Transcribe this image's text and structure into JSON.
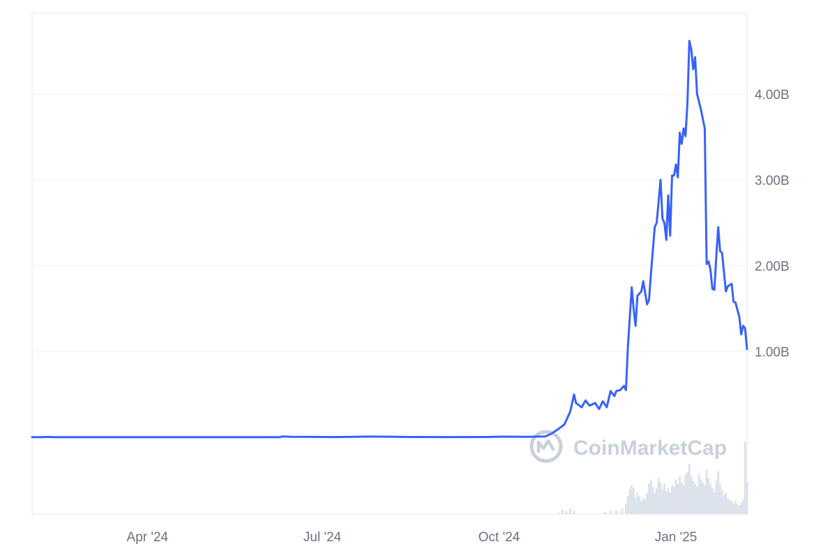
{
  "watermark": {
    "text": "CoinMarketCap"
  },
  "colors": {
    "line": "#3861FB",
    "volume": "#DDE3EC",
    "grid": "#EEF0F3",
    "border": "#E3E6EB",
    "axis_text": "#6B7180",
    "watermark": "#C9D0DC"
  },
  "chart_data": {
    "type": "line",
    "title": "",
    "xlabel": "",
    "ylabel": "",
    "x_ticks": [
      "Apr '24",
      "Jul '24",
      "Oct '24",
      "Jan '25"
    ],
    "y_ticks": [
      "1.00B",
      "2.00B",
      "3.00B",
      "4.00B"
    ],
    "y_tick_values": [
      1000000000,
      2000000000,
      3000000000,
      4000000000
    ],
    "ylim": [
      0,
      4950000000
    ],
    "xlim": [
      "2024-02-01",
      "2025-02-07"
    ],
    "grid": true,
    "series": [
      {
        "values": [
          [
            "2024-02-01",
            2000000
          ],
          [
            "2024-02-06",
            2500000
          ],
          [
            "2024-02-10",
            5000000
          ],
          [
            "2024-02-11",
            3000000
          ],
          [
            "2024-02-12",
            2000000
          ],
          [
            "2024-03-15",
            1500000
          ],
          [
            "2024-04-20",
            1500000
          ],
          [
            "2024-05-30",
            1500000
          ],
          [
            "2024-06-09",
            1500000
          ],
          [
            "2024-06-10",
            10000000
          ],
          [
            "2024-06-12",
            9000000
          ],
          [
            "2024-06-15",
            6000000
          ],
          [
            "2024-06-25",
            5000000
          ],
          [
            "2024-07-08",
            3000000
          ],
          [
            "2024-07-18",
            6000000
          ],
          [
            "2024-07-25",
            9000000
          ],
          [
            "2024-08-05",
            7000000
          ],
          [
            "2024-08-15",
            4000000
          ],
          [
            "2024-09-10",
            3000000
          ],
          [
            "2024-09-25",
            4000000
          ],
          [
            "2024-10-03",
            8000000
          ],
          [
            "2024-10-15",
            6000000
          ],
          [
            "2024-10-25",
            10000000
          ],
          [
            "2024-10-28",
            40000000
          ],
          [
            "2024-11-01",
            100000000
          ],
          [
            "2024-11-04",
            150000000
          ],
          [
            "2024-11-07",
            300000000
          ],
          [
            "2024-11-08",
            400000000
          ],
          [
            "2024-11-09",
            500000000
          ],
          [
            "2024-11-10",
            400000000
          ],
          [
            "2024-11-13",
            350000000
          ],
          [
            "2024-11-15",
            430000000
          ],
          [
            "2024-11-17",
            370000000
          ],
          [
            "2024-11-20",
            400000000
          ],
          [
            "2024-11-22",
            330000000
          ],
          [
            "2024-11-24",
            420000000
          ],
          [
            "2024-11-26",
            350000000
          ],
          [
            "2024-11-28",
            540000000
          ],
          [
            "2024-11-30",
            480000000
          ],
          [
            "2024-12-01",
            540000000
          ],
          [
            "2024-12-03",
            550000000
          ],
          [
            "2024-12-05",
            600000000
          ],
          [
            "2024-12-06",
            550000000
          ],
          [
            "2024-12-07",
            1050000000
          ],
          [
            "2024-12-09",
            1750000000
          ],
          [
            "2024-12-10",
            1500000000
          ],
          [
            "2024-12-11",
            1300000000
          ],
          [
            "2024-12-12",
            1650000000
          ],
          [
            "2024-12-14",
            1700000000
          ],
          [
            "2024-12-15",
            1820000000
          ],
          [
            "2024-12-16",
            1680000000
          ],
          [
            "2024-12-17",
            1550000000
          ],
          [
            "2024-12-18",
            1600000000
          ],
          [
            "2024-12-19",
            1900000000
          ],
          [
            "2024-12-21",
            2450000000
          ],
          [
            "2024-12-22",
            2500000000
          ],
          [
            "2024-12-24",
            3000000000
          ],
          [
            "2024-12-25",
            2550000000
          ],
          [
            "2024-12-26",
            2500000000
          ],
          [
            "2024-12-27",
            2300000000
          ],
          [
            "2024-12-28",
            2820000000
          ],
          [
            "2024-12-29",
            2350000000
          ],
          [
            "2024-12-30",
            3050000000
          ],
          [
            "2024-12-31",
            3050000000
          ],
          [
            "2025-01-01",
            3180000000
          ],
          [
            "2025-01-02",
            3030000000
          ],
          [
            "2025-01-03",
            3550000000
          ],
          [
            "2025-01-04",
            3420000000
          ],
          [
            "2025-01-05",
            3600000000
          ],
          [
            "2025-01-06",
            3510000000
          ],
          [
            "2025-01-07",
            3900000000
          ],
          [
            "2025-01-08",
            4620000000
          ],
          [
            "2025-01-09",
            4520000000
          ],
          [
            "2025-01-10",
            4290000000
          ],
          [
            "2025-01-11",
            4430000000
          ],
          [
            "2025-01-12",
            4000000000
          ],
          [
            "2025-01-14",
            3820000000
          ],
          [
            "2025-01-16",
            3600000000
          ],
          [
            "2025-01-17",
            2020000000
          ],
          [
            "2025-01-18",
            2050000000
          ],
          [
            "2025-01-19",
            1950000000
          ],
          [
            "2025-01-20",
            1730000000
          ],
          [
            "2025-01-21",
            1720000000
          ],
          [
            "2025-01-22",
            2100000000
          ],
          [
            "2025-01-23",
            2450000000
          ],
          [
            "2025-01-24",
            2170000000
          ],
          [
            "2025-01-25",
            2150000000
          ],
          [
            "2025-01-27",
            1700000000
          ],
          [
            "2025-01-28",
            1760000000
          ],
          [
            "2025-01-30",
            1790000000
          ],
          [
            "2025-01-31",
            1580000000
          ],
          [
            "2025-02-01",
            1570000000
          ],
          [
            "2025-02-03",
            1400000000
          ],
          [
            "2025-02-04",
            1200000000
          ],
          [
            "2025-02-05",
            1300000000
          ],
          [
            "2025-02-06",
            1270000000
          ],
          [
            "2025-02-07",
            1030000000
          ]
        ]
      }
    ],
    "volume": {
      "values": [
        [
          "2024-11-01",
          0.02
        ],
        [
          "2024-11-03",
          0.06
        ],
        [
          "2024-11-05",
          0.04
        ],
        [
          "2024-11-07",
          0.08
        ],
        [
          "2024-11-09",
          0.05
        ],
        [
          "2024-11-25",
          0.03
        ],
        [
          "2024-11-28",
          0.04
        ],
        [
          "2024-12-01",
          0.06
        ],
        [
          "2024-12-04",
          0.08
        ],
        [
          "2024-12-06",
          0.15
        ],
        [
          "2024-12-07",
          0.25
        ],
        [
          "2024-12-08",
          0.35
        ],
        [
          "2024-12-09",
          0.4
        ],
        [
          "2024-12-10",
          0.36
        ],
        [
          "2024-12-11",
          0.22
        ],
        [
          "2024-12-12",
          0.3
        ],
        [
          "2024-12-13",
          0.25
        ],
        [
          "2024-12-14",
          0.18
        ],
        [
          "2024-12-15",
          0.22
        ],
        [
          "2024-12-16",
          0.2
        ],
        [
          "2024-12-17",
          0.3
        ],
        [
          "2024-12-18",
          0.42
        ],
        [
          "2024-12-19",
          0.48
        ],
        [
          "2024-12-20",
          0.38
        ],
        [
          "2024-12-21",
          0.3
        ],
        [
          "2024-12-22",
          0.36
        ],
        [
          "2024-12-23",
          0.5
        ],
        [
          "2024-12-24",
          0.44
        ],
        [
          "2024-12-25",
          0.34
        ],
        [
          "2024-12-26",
          0.42
        ],
        [
          "2024-12-27",
          0.32
        ],
        [
          "2024-12-28",
          0.36
        ],
        [
          "2024-12-29",
          0.3
        ],
        [
          "2024-12-30",
          0.4
        ],
        [
          "2024-12-31",
          0.38
        ],
        [
          "2025-01-01",
          0.48
        ],
        [
          "2025-01-02",
          0.42
        ],
        [
          "2025-01-03",
          0.52
        ],
        [
          "2025-01-04",
          0.44
        ],
        [
          "2025-01-05",
          0.4
        ],
        [
          "2025-01-06",
          0.55
        ],
        [
          "2025-01-07",
          0.58
        ],
        [
          "2025-01-08",
          0.7
        ],
        [
          "2025-01-09",
          0.52
        ],
        [
          "2025-01-10",
          0.46
        ],
        [
          "2025-01-11",
          0.42
        ],
        [
          "2025-01-12",
          0.38
        ],
        [
          "2025-01-13",
          0.56
        ],
        [
          "2025-01-14",
          0.48
        ],
        [
          "2025-01-15",
          0.44
        ],
        [
          "2025-01-16",
          0.4
        ],
        [
          "2025-01-17",
          0.62
        ],
        [
          "2025-01-18",
          0.5
        ],
        [
          "2025-01-19",
          0.42
        ],
        [
          "2025-01-20",
          0.36
        ],
        [
          "2025-01-21",
          0.3
        ],
        [
          "2025-01-22",
          0.46
        ],
        [
          "2025-01-23",
          0.6
        ],
        [
          "2025-01-24",
          0.42
        ],
        [
          "2025-01-25",
          0.34
        ],
        [
          "2025-01-26",
          0.26
        ],
        [
          "2025-01-27",
          0.3
        ],
        [
          "2025-01-28",
          0.22
        ],
        [
          "2025-01-29",
          0.2
        ],
        [
          "2025-01-30",
          0.18
        ],
        [
          "2025-01-31",
          0.14
        ],
        [
          "2025-02-01",
          0.18
        ],
        [
          "2025-02-02",
          0.14
        ],
        [
          "2025-02-03",
          0.12
        ],
        [
          "2025-02-04",
          0.16
        ],
        [
          "2025-02-05",
          0.2
        ],
        [
          "2025-02-06",
          1.0
        ],
        [
          "2025-02-07",
          0.45
        ]
      ]
    }
  }
}
